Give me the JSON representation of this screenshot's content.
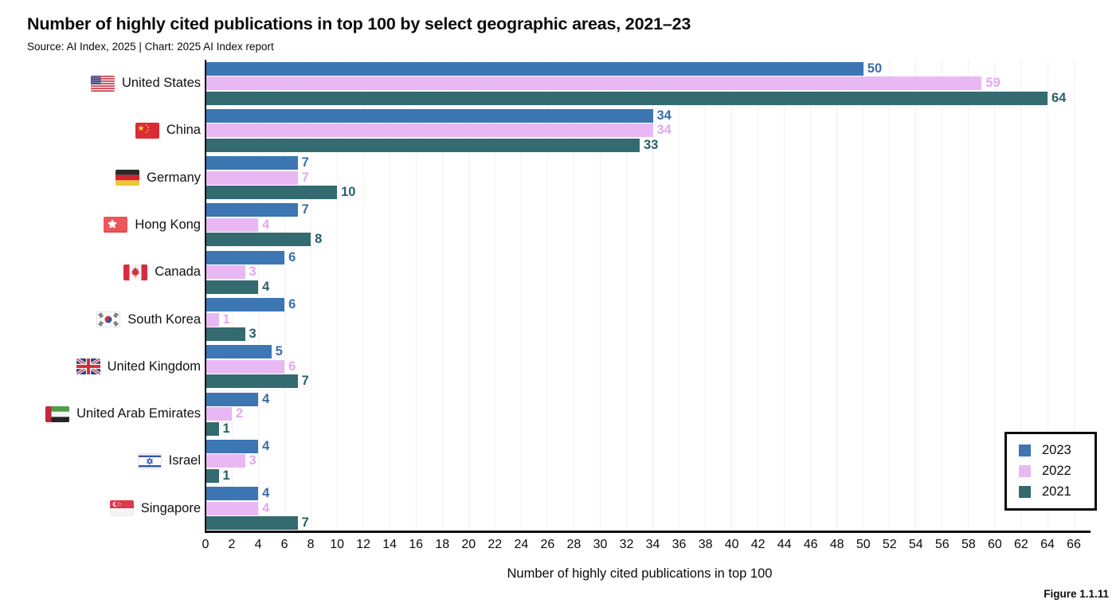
{
  "header": {
    "title": "Number of highly cited publications in top 100 by select geographic areas, 2021–23",
    "source": "Source: AI Index, 2025 | Chart: 2025 AI Index report"
  },
  "figure_label": "Figure 1.1.11",
  "chart_data": {
    "type": "bar",
    "orientation": "horizontal",
    "title": "Number of highly cited publications in top 100 by select geographic areas, 2021–23",
    "xlabel": "Number of highly cited publications in top 100",
    "ylabel": "",
    "xlim": [
      0,
      66
    ],
    "grid": true,
    "legend_position": "bottom-right",
    "x_ticks": [
      0,
      2,
      4,
      6,
      8,
      10,
      12,
      14,
      16,
      18,
      20,
      22,
      24,
      26,
      28,
      30,
      32,
      34,
      36,
      38,
      40,
      42,
      44,
      46,
      48,
      50,
      52,
      54,
      56,
      58,
      60,
      62,
      64,
      66
    ],
    "categories": [
      "United States",
      "China",
      "Germany",
      "Hong Kong",
      "Canada",
      "South Korea",
      "United Kingdom",
      "United Arab Emirates",
      "Israel",
      "Singapore"
    ],
    "flag_icons": [
      "united-states",
      "china",
      "germany",
      "hong-kong",
      "canada",
      "south-korea",
      "united-kingdom",
      "united-arab-emirates",
      "israel",
      "singapore"
    ],
    "series": [
      {
        "name": "2023",
        "color": "#3C76B3",
        "label_color": "#3A6EA8",
        "values": [
          50,
          34,
          7,
          7,
          6,
          6,
          5,
          4,
          4,
          4
        ]
      },
      {
        "name": "2022",
        "color": "#E9B8F4",
        "label_color": "#E2A8F0",
        "values": [
          59,
          34,
          7,
          4,
          3,
          1,
          6,
          2,
          3,
          4
        ]
      },
      {
        "name": "2021",
        "color": "#346B70",
        "label_color": "#2B6067",
        "values": [
          64,
          33,
          10,
          8,
          4,
          3,
          7,
          1,
          1,
          7
        ]
      }
    ]
  },
  "legend": {
    "items": [
      {
        "label": "2023",
        "color": "#3C76B3"
      },
      {
        "label": "2022",
        "color": "#E9B8F4"
      },
      {
        "label": "2021",
        "color": "#346B70"
      }
    ]
  }
}
